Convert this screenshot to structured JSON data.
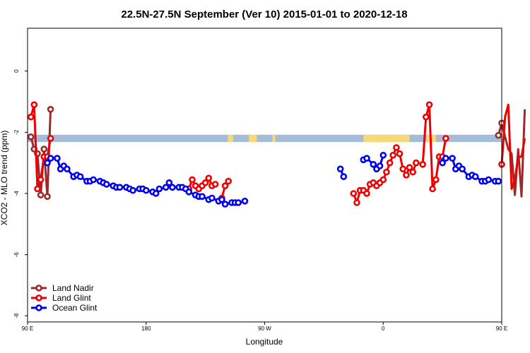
{
  "chart_data": {
    "type": "line",
    "title": "22.5N-27.5N September (Ver 10)   2015-01-01 to 2020-12-18",
    "xlabel": "Longitude",
    "ylabel": "XCO2 - MLO trend (ppm)",
    "xlim": [
      90,
      450
    ],
    "ylim": [
      -8.2,
      1.4
    ],
    "x_ticks": [
      {
        "value": 90,
        "label": "90 E"
      },
      {
        "value": 180,
        "label": "180"
      },
      {
        "value": 270,
        "label": "90 W"
      },
      {
        "value": 360,
        "label": "0"
      },
      {
        "value": 450,
        "label": "90 E"
      },
      {
        "value": 540,
        "label": "180"
      }
    ],
    "y_ticks": [
      {
        "value": 0,
        "label": "0"
      },
      {
        "value": -2,
        "label": "-2"
      },
      {
        "value": -4,
        "label": "-4"
      },
      {
        "value": -6,
        "label": "-6"
      },
      {
        "value": -8,
        "label": "-8"
      }
    ],
    "land_ocean_band": {
      "y_range": [
        -2.32,
        -2.08
      ],
      "ocean_color": "#a4bcd8",
      "land_color": "#f8d97a",
      "land_segments": [
        [
          242,
          246
        ],
        [
          258,
          264
        ],
        [
          276,
          278
        ],
        [
          345,
          380
        ],
        [
          393,
          400
        ],
        [
          472,
          481
        ]
      ]
    },
    "legend": {
      "position": "bottom-left"
    },
    "series": [
      {
        "name": "Land Nadir",
        "color": "#9b2b2b",
        "segments": [
          [
            [
              92.5,
              -2.15
            ],
            [
              95,
              -2.55
            ],
            [
              97.5,
              -2.7
            ],
            [
              100,
              -4.05
            ],
            [
              102.5,
              -2.55
            ],
            [
              105,
              -4.1
            ],
            [
              107.5,
              -1.25
            ]
          ],
          [
            [
              447.5,
              -2.1
            ],
            [
              450,
              -1.7
            ],
            [
              452.5,
              -2.15
            ],
            [
              455,
              -2.55
            ],
            [
              457.5,
              -2.7
            ],
            [
              460,
              -4.05
            ],
            [
              462.5,
              -2.55
            ],
            [
              465,
              -4.1
            ],
            [
              467.5,
              -1.25
            ]
          ]
        ]
      },
      {
        "name": "Land Glint",
        "color": "#ee0000",
        "segments": [
          [
            [
              92.5,
              -1.5
            ],
            [
              95,
              -1.1
            ],
            [
              97.5,
              -3.85
            ],
            [
              100,
              -3.55
            ],
            [
              102.5,
              -2.8
            ],
            [
              105,
              -2.8
            ],
            [
              107.5,
              -2.2
            ]
          ],
          [
            [
              212.5,
              -3.85
            ],
            [
              215,
              -3.55
            ],
            [
              217.5,
              -3.75
            ],
            [
              220,
              -3.85
            ]
          ],
          [
            [
              222.5,
              -3.75
            ],
            [
              225,
              -3.65
            ],
            [
              227.5,
              -3.5
            ],
            [
              230,
              -3.75
            ],
            [
              232.5,
              -3.7
            ]
          ],
          [
            [
              237.5,
              -4.15
            ],
            [
              240,
              -3.75
            ],
            [
              242.5,
              -3.6
            ]
          ],
          [
            [
              337.5,
              -4.0
            ],
            [
              340,
              -4.3
            ],
            [
              342.5,
              -3.9
            ],
            [
              345,
              -3.9
            ],
            [
              347.5,
              -4.0
            ],
            [
              350,
              -3.7
            ],
            [
              352.5,
              -3.65
            ],
            [
              355,
              -3.75
            ],
            [
              357.5,
              -3.65
            ]
          ],
          [
            [
              360,
              -3.55
            ],
            [
              362.5,
              -3.3
            ],
            [
              365,
              -3.0
            ],
            [
              367.5,
              -2.75
            ],
            [
              370,
              -2.5
            ],
            [
              372.5,
              -2.7
            ],
            [
              375,
              -3.2
            ],
            [
              377.5,
              -3.4
            ],
            [
              380,
              -3.15
            ],
            [
              382.5,
              -3.3
            ],
            [
              385,
              -3.0
            ]
          ],
          [
            [
              390,
              -3.05
            ],
            [
              392.5,
              -1.5
            ],
            [
              395,
              -1.1
            ],
            [
              397.5,
              -3.85
            ],
            [
              400,
              -3.55
            ],
            [
              402.5,
              -2.8
            ],
            [
              405,
              -2.8
            ],
            [
              407.5,
              -2.2
            ]
          ],
          [
            [
              450,
              -3.05
            ],
            [
              452.5,
              -1.5
            ],
            [
              455,
              -1.1
            ],
            [
              457.5,
              -3.85
            ],
            [
              460,
              -3.55
            ],
            [
              462.5,
              -2.8
            ],
            [
              465,
              -2.8
            ],
            [
              467.5,
              -2.2
            ]
          ]
        ]
      },
      {
        "name": "Ocean Glint",
        "color": "#0000ee",
        "segments": [
          [
            [
              105,
              -3.0
            ],
            [
              107.5,
              -2.85
            ],
            [
              112.5,
              -2.85
            ],
            [
              115,
              -3.2
            ],
            [
              117.5,
              -3.1
            ],
            [
              120,
              -3.2
            ],
            [
              125,
              -3.45
            ],
            [
              127.5,
              -3.4
            ],
            [
              130,
              -3.45
            ],
            [
              135,
              -3.6
            ],
            [
              137.5,
              -3.6
            ],
            [
              140,
              -3.55
            ],
            [
              145,
              -3.6
            ],
            [
              147.5,
              -3.65
            ],
            [
              150,
              -3.7
            ],
            [
              155,
              -3.75
            ],
            [
              157.5,
              -3.8
            ],
            [
              160,
              -3.8
            ],
            [
              165,
              -3.8
            ],
            [
              167.5,
              -3.85
            ],
            [
              170,
              -3.9
            ],
            [
              175,
              -3.85
            ],
            [
              177.5,
              -3.85
            ],
            [
              180,
              -3.9
            ],
            [
              185,
              -3.95
            ],
            [
              187.5,
              -4.0
            ],
            [
              190,
              -3.85
            ],
            [
              195,
              -3.8
            ],
            [
              197.5,
              -3.65
            ],
            [
              200,
              -3.8
            ],
            [
              205,
              -3.8
            ],
            [
              207.5,
              -3.8
            ],
            [
              210,
              -3.85
            ],
            [
              212.5,
              -3.95
            ],
            [
              217.5,
              -4.05
            ],
            [
              220,
              -4.1
            ],
            [
              222.5,
              -4.1
            ],
            [
              227.5,
              -4.2
            ],
            [
              230,
              -4.15
            ],
            [
              235,
              -4.25
            ],
            [
              237.5,
              -4.2
            ],
            [
              240,
              -4.35
            ],
            [
              245,
              -4.3
            ],
            [
              247.5,
              -4.3
            ],
            [
              250,
              -4.3
            ],
            [
              255,
              -4.25
            ]
          ],
          [
            [
              327.5,
              -3.2
            ],
            [
              330,
              -3.45
            ]
          ],
          [
            [
              345,
              -2.9
            ],
            [
              347.5,
              -2.85
            ],
            [
              352.5,
              -3.05
            ],
            [
              355,
              -3.2
            ],
            [
              357.5,
              -3.1
            ],
            [
              360,
              -2.75
            ]
          ],
          [
            [
              405,
              -3.0
            ],
            [
              407.5,
              -2.85
            ],
            [
              412.5,
              -2.85
            ],
            [
              415,
              -3.2
            ],
            [
              417.5,
              -3.1
            ],
            [
              420,
              -3.2
            ],
            [
              425,
              -3.45
            ],
            [
              427.5,
              -3.4
            ],
            [
              430,
              -3.45
            ],
            [
              435,
              -3.6
            ],
            [
              437.5,
              -3.6
            ],
            [
              440,
              -3.55
            ],
            [
              445,
              -3.6
            ],
            [
              447.5,
              -3.6
            ]
          ]
        ]
      }
    ]
  }
}
